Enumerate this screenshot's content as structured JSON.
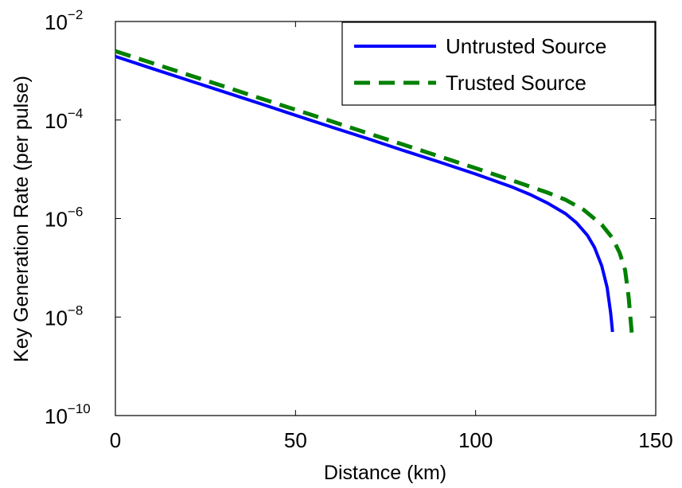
{
  "chart_data": {
    "type": "line",
    "xlabel": "Distance (km)",
    "ylabel": "Key Generation Rate (per pulse)",
    "xlim": [
      0,
      150
    ],
    "ylim": [
      1e-10,
      0.01
    ],
    "yscale": "log",
    "grid": false,
    "legend_position": "top-right",
    "x_ticks": [
      {
        "value": 0,
        "label": "0"
      },
      {
        "value": 50,
        "label": "50"
      },
      {
        "value": 100,
        "label": "100"
      },
      {
        "value": 150,
        "label": "150"
      }
    ],
    "y_ticks": [
      {
        "value": 1e-10,
        "base": "10",
        "exp": "−10"
      },
      {
        "value": 1e-08,
        "base": "10",
        "exp": "−8"
      },
      {
        "value": 1e-06,
        "base": "10",
        "exp": "−6"
      },
      {
        "value": 0.0001,
        "base": "10",
        "exp": "−4"
      },
      {
        "value": 0.01,
        "base": "10",
        "exp": "−2"
      }
    ],
    "series": [
      {
        "name": "Untrusted Source",
        "color": "#0000ff",
        "style": "solid",
        "x": [
          0,
          10,
          20,
          30,
          40,
          50,
          60,
          70,
          80,
          90,
          100,
          110,
          115,
          120,
          125,
          128,
          131,
          133,
          135,
          136.5,
          137.5,
          138
        ],
        "y": [
          0.00195,
          0.00112,
          0.00065,
          0.000375,
          0.000217,
          0.000125,
          7.2e-05,
          4.2e-05,
          2.4e-05,
          1.4e-05,
          8e-06,
          4.4e-06,
          3.1e-06,
          2.05e-06,
          1.25e-06,
          8.2e-07,
          4.6e-07,
          2.6e-07,
          1.1e-07,
          4e-08,
          1.2e-08,
          5e-09
        ]
      },
      {
        "name": "Trusted Source",
        "color": "#008000",
        "style": "dashed",
        "x": [
          0,
          10,
          20,
          30,
          40,
          50,
          60,
          70,
          80,
          90,
          100,
          110,
          120,
          125,
          130,
          135,
          138,
          140,
          141.5,
          142.5,
          143.5
        ],
        "y": [
          0.0025,
          0.00145,
          0.00084,
          0.000485,
          0.00028,
          0.000162,
          9.4e-05,
          5.4e-05,
          3.15e-05,
          1.82e-05,
          1.05e-05,
          6e-06,
          3.35e-06,
          2.4e-06,
          1.5e-06,
          7.5e-07,
          4e-07,
          2e-07,
          9e-08,
          2.5e-08,
          3.5e-09
        ]
      }
    ]
  }
}
